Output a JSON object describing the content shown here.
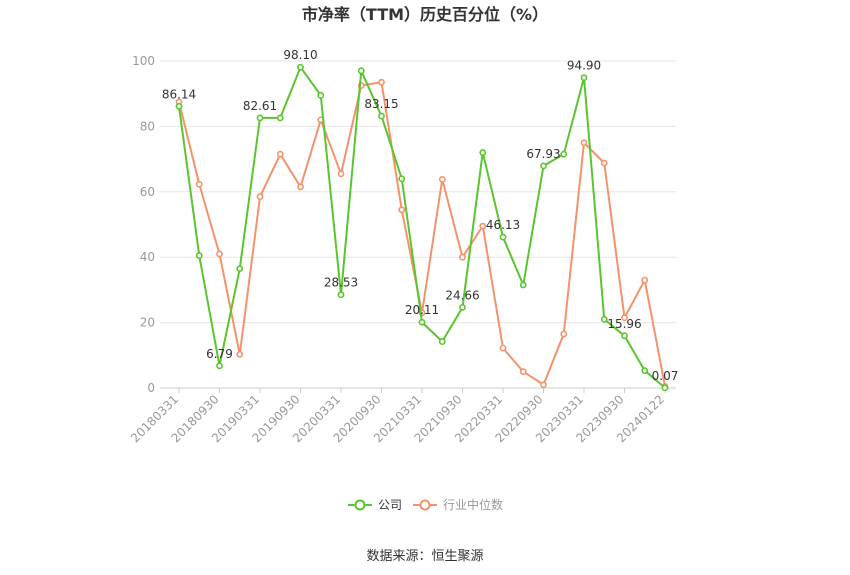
{
  "title": "市净率（TTM）历史百分位（%）",
  "source": "数据来源：恒生聚源",
  "chart_data": {
    "type": "line",
    "title": "市净率（TTM）历史百分位（%）",
    "ylim": [
      0,
      100
    ],
    "yticks": [
      "0",
      "20",
      "40",
      "60",
      "80",
      "100"
    ],
    "x": [
      "20180331",
      "20180630",
      "20180930",
      "20181231",
      "20190331",
      "20190630",
      "20190930",
      "20191231",
      "20200331",
      "20200630",
      "20200930",
      "20201231",
      "20210331",
      "20210630",
      "20210930",
      "20211231",
      "20220331",
      "20220630",
      "20220930",
      "20221231",
      "20230331",
      "20230630",
      "20230930",
      "20231231",
      "20240122"
    ],
    "xtick_labels": [
      "20180331",
      "20180930",
      "20190331",
      "20190930",
      "20200331",
      "20200930",
      "20210331",
      "20210930",
      "20220331",
      "20220930",
      "20230331",
      "20230930",
      "20240122"
    ],
    "legend_position": "bottom",
    "grid": true,
    "series": [
      {
        "name": "公司",
        "color": "#5ac52f",
        "values": [
          86.14,
          40.5,
          6.79,
          36.5,
          82.61,
          82.6,
          98.1,
          89.5,
          28.53,
          97.0,
          83.15,
          64.0,
          20.11,
          14.2,
          24.66,
          72.0,
          46.13,
          31.5,
          67.93,
          71.5,
          94.9,
          21.0,
          15.96,
          5.3,
          0.07
        ],
        "labels": [
          "86.14",
          null,
          "6.79",
          null,
          "82.61",
          null,
          "98.10",
          null,
          "28.53",
          null,
          "83.15",
          null,
          "20.11",
          null,
          "24.66",
          null,
          "46.13",
          null,
          "67.93",
          null,
          "94.90",
          null,
          "15.96",
          null,
          "0.07"
        ]
      },
      {
        "name": "行业中位数",
        "color": "#f4926b",
        "values": [
          87.5,
          62.3,
          41.0,
          10.3,
          58.5,
          71.5,
          61.5,
          82.0,
          65.5,
          92.5,
          93.5,
          54.5,
          23.0,
          63.8,
          40.0,
          49.5,
          12.2,
          5.0,
          1.0,
          16.5,
          75.0,
          68.8,
          21.5,
          33.0,
          0.5
        ]
      }
    ]
  }
}
